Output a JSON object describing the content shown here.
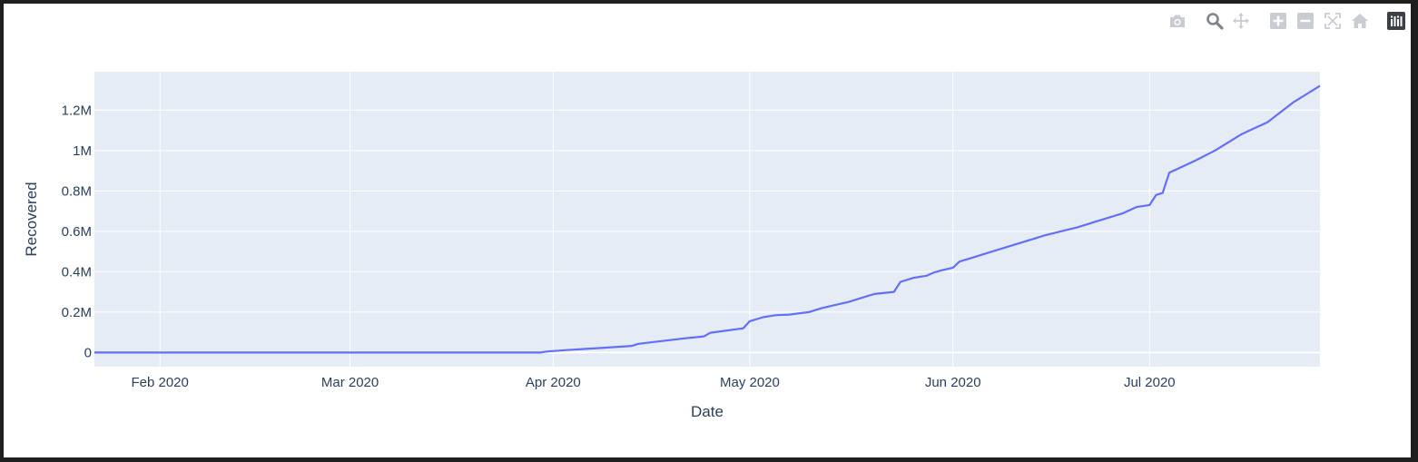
{
  "modebar": {
    "buttons": [
      {
        "name": "camera-icon",
        "title": "Download plot as a png"
      },
      {
        "name": "zoom-icon",
        "title": "Zoom"
      },
      {
        "name": "pan-icon",
        "title": "Pan"
      },
      {
        "name": "zoom-in-icon",
        "title": "Zoom in"
      },
      {
        "name": "zoom-out-icon",
        "title": "Zoom out"
      },
      {
        "name": "autoscale-icon",
        "title": "Autoscale"
      },
      {
        "name": "reset-axes-icon",
        "title": "Reset axes"
      },
      {
        "name": "plotly-logo-icon",
        "title": "Produced with Plotly"
      }
    ]
  },
  "colors": {
    "plot_bg": "#e5ecf6",
    "grid": "#ffffff",
    "line": "#636efa",
    "text": "#2a3f5f",
    "modebar_icon": "#c9ccd3",
    "modebar_active": "#7f858f"
  },
  "chart_data": {
    "type": "line",
    "title": "",
    "xlabel": "Date",
    "ylabel": "Recovered",
    "xlim": [
      "2020-01-22",
      "2020-07-27"
    ],
    "ylim": [
      -70000,
      1390000
    ],
    "x_tick_values": [
      "2020-02-01",
      "2020-03-01",
      "2020-04-01",
      "2020-05-01",
      "2020-06-01",
      "2020-07-01"
    ],
    "x_tick_labels": [
      "Feb 2020",
      "Mar 2020",
      "Apr 2020",
      "May 2020",
      "Jun 2020",
      "Jul 2020"
    ],
    "y_tick_values": [
      0,
      200000,
      400000,
      600000,
      800000,
      1000000,
      1200000
    ],
    "y_tick_labels": [
      "0",
      "0.2M",
      "0.4M",
      "0.6M",
      "0.8M",
      "1M",
      "1.2M"
    ],
    "grid": true,
    "legend": "none",
    "series": [
      {
        "name": "Recovered",
        "x": [
          "2020-01-22",
          "2020-03-30",
          "2020-03-31",
          "2020-04-03",
          "2020-04-08",
          "2020-04-13",
          "2020-04-14",
          "2020-04-21",
          "2020-04-24",
          "2020-04-25",
          "2020-04-30",
          "2020-05-01",
          "2020-05-03",
          "2020-05-05",
          "2020-05-07",
          "2020-05-10",
          "2020-05-12",
          "2020-05-14",
          "2020-05-16",
          "2020-05-19",
          "2020-05-20",
          "2020-05-23",
          "2020-05-24",
          "2020-05-26",
          "2020-05-28",
          "2020-05-29",
          "2020-05-30",
          "2020-06-01",
          "2020-06-02",
          "2020-06-04",
          "2020-06-07",
          "2020-06-10",
          "2020-06-13",
          "2020-06-15",
          "2020-06-20",
          "2020-06-23",
          "2020-06-27",
          "2020-06-29",
          "2020-07-01",
          "2020-07-02",
          "2020-07-03",
          "2020-07-04",
          "2020-07-06",
          "2020-07-08",
          "2020-07-11",
          "2020-07-13",
          "2020-07-15",
          "2020-07-17",
          "2020-07-19",
          "2020-07-21",
          "2020-07-23",
          "2020-07-25",
          "2020-07-27"
        ],
        "values": [
          0,
          0,
          5000,
          12000,
          22000,
          33000,
          43000,
          70000,
          80000,
          98000,
          120000,
          155000,
          175000,
          185000,
          188000,
          200000,
          220000,
          235000,
          250000,
          280000,
          290000,
          300000,
          350000,
          370000,
          380000,
          395000,
          405000,
          420000,
          450000,
          470000,
          500000,
          530000,
          560000,
          580000,
          620000,
          650000,
          690000,
          720000,
          730000,
          780000,
          790000,
          890000,
          920000,
          950000,
          1000000,
          1040000,
          1080000,
          1110000,
          1140000,
          1190000,
          1240000,
          1280000,
          1320000
        ]
      }
    ]
  }
}
